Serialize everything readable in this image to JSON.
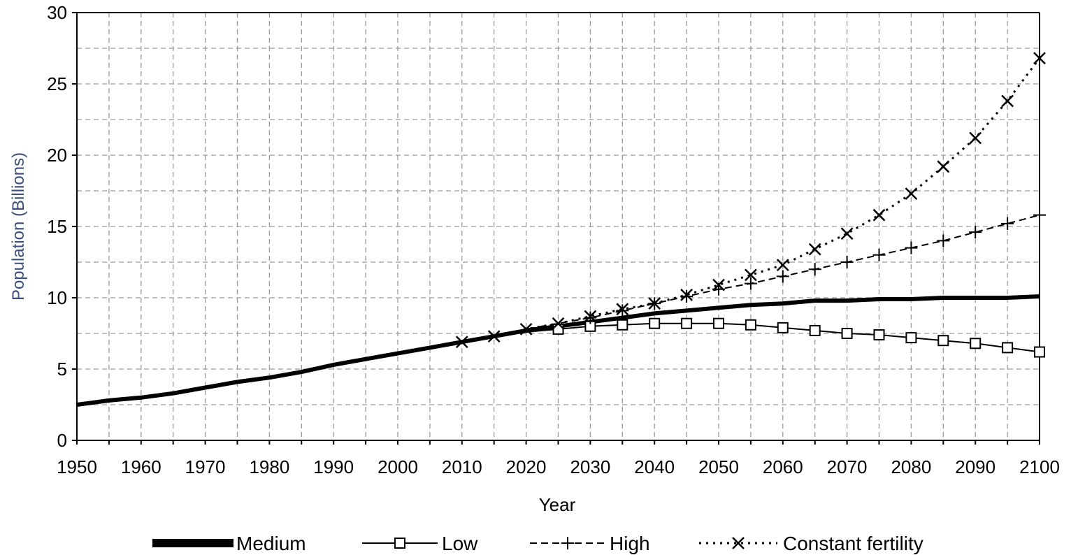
{
  "chart_data": {
    "type": "line",
    "xlabel": "Year",
    "ylabel": "Population (Billions)",
    "xlim": [
      1950,
      2100
    ],
    "ylim": [
      0,
      30
    ],
    "xticks": [
      "1950",
      "1960",
      "1970",
      "1980",
      "1990",
      "2000",
      "2010",
      "2020",
      "2030",
      "2040",
      "2050",
      "2060",
      "2070",
      "2080",
      "2090",
      "2100"
    ],
    "yticks": [
      "0",
      "5",
      "10",
      "15",
      "20",
      "25",
      "30"
    ],
    "grid": true,
    "legend_position": "bottom",
    "series": [
      {
        "name": "Medium",
        "style": "thick-solid",
        "x": [
          1950,
          1955,
          1960,
          1965,
          1970,
          1975,
          1980,
          1985,
          1990,
          1995,
          2000,
          2005,
          2010,
          2015,
          2020,
          2025,
          2030,
          2035,
          2040,
          2045,
          2050,
          2055,
          2060,
          2065,
          2070,
          2075,
          2080,
          2085,
          2090,
          2095,
          2100
        ],
        "values": [
          2.5,
          2.8,
          3.0,
          3.3,
          3.7,
          4.1,
          4.4,
          4.8,
          5.3,
          5.7,
          6.1,
          6.5,
          6.9,
          7.3,
          7.7,
          8.0,
          8.3,
          8.6,
          8.9,
          9.1,
          9.3,
          9.5,
          9.6,
          9.8,
          9.8,
          9.9,
          9.9,
          10.0,
          10.0,
          10.0,
          10.1
        ]
      },
      {
        "name": "Low",
        "style": "square-markers",
        "x": [
          2010,
          2015,
          2020,
          2025,
          2030,
          2035,
          2040,
          2045,
          2050,
          2055,
          2060,
          2065,
          2070,
          2075,
          2080,
          2085,
          2090,
          2095,
          2100
        ],
        "values": [
          6.9,
          7.3,
          7.6,
          7.8,
          8.0,
          8.1,
          8.2,
          8.2,
          8.2,
          8.1,
          7.9,
          7.7,
          7.5,
          7.4,
          7.2,
          7.0,
          6.8,
          6.5,
          6.2
        ],
        "markers": [
          2025,
          2030,
          2035,
          2040,
          2045,
          2050,
          2055,
          2060,
          2065,
          2070,
          2075,
          2080,
          2085,
          2090,
          2095,
          2100
        ]
      },
      {
        "name": "High",
        "style": "plus-markers",
        "x": [
          2010,
          2015,
          2020,
          2025,
          2030,
          2035,
          2040,
          2045,
          2050,
          2055,
          2060,
          2065,
          2070,
          2075,
          2080,
          2085,
          2090,
          2095,
          2100
        ],
        "values": [
          6.9,
          7.3,
          7.8,
          8.2,
          8.6,
          9.1,
          9.6,
          10.1,
          10.6,
          11.0,
          11.5,
          12.0,
          12.5,
          13.0,
          13.5,
          14.0,
          14.6,
          15.2,
          15.8
        ],
        "markers": [
          2030,
          2035,
          2040,
          2045,
          2050,
          2055,
          2060,
          2065,
          2070,
          2075,
          2080,
          2085,
          2090,
          2095,
          2100
        ]
      },
      {
        "name": "Constant fertility",
        "style": "dotted-x-markers",
        "x": [
          2010,
          2015,
          2020,
          2025,
          2030,
          2035,
          2040,
          2045,
          2050,
          2055,
          2060,
          2065,
          2070,
          2075,
          2080,
          2085,
          2090,
          2095,
          2100
        ],
        "values": [
          6.9,
          7.3,
          7.8,
          8.2,
          8.7,
          9.2,
          9.6,
          10.2,
          10.9,
          11.6,
          12.3,
          13.4,
          14.5,
          15.8,
          17.3,
          19.2,
          21.2,
          23.8,
          26.8
        ],
        "markers": [
          2010,
          2015,
          2020,
          2025,
          2030,
          2035,
          2040,
          2045,
          2050,
          2055,
          2060,
          2065,
          2070,
          2075,
          2080,
          2085,
          2090,
          2095,
          2100
        ]
      }
    ]
  }
}
